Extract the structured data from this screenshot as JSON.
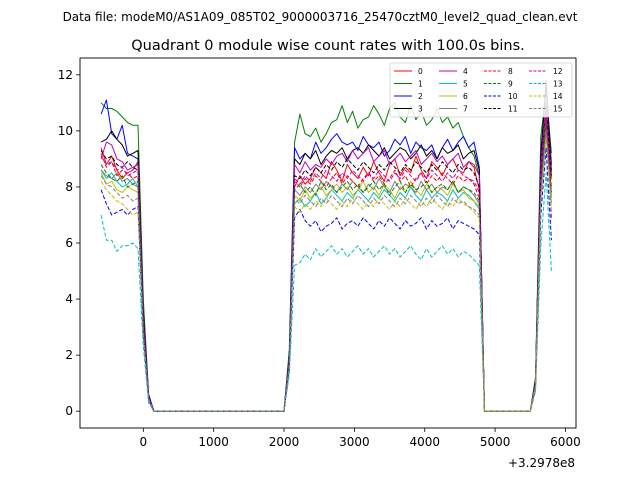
{
  "figure": {
    "suptitle": "Data file: modeM0/AS1A09_085T02_9000003716_25470cztM0_level2_quad_clean.evt"
  },
  "chart_data": {
    "type": "line",
    "title": "Quadrant 0 module wise count rates with 100.0s bins.",
    "xlabel": "",
    "ylabel": "",
    "x_offset_label": "+3.2978e8",
    "xlim": [
      -900,
      6150
    ],
    "ylim": [
      -0.6,
      12.6
    ],
    "xticks": [
      0,
      1000,
      2000,
      3000,
      4000,
      5000,
      6000
    ],
    "yticks": [
      0,
      2,
      4,
      6,
      8,
      10,
      12
    ],
    "grid": false,
    "legend_position": "top-right",
    "x": [
      -600,
      -525,
      -450,
      -375,
      -300,
      -225,
      -150,
      -75,
      0,
      75,
      150,
      2000,
      2075,
      2150,
      2225,
      2300,
      2375,
      2450,
      2525,
      2600,
      2675,
      2750,
      2825,
      2900,
      2975,
      3050,
      3125,
      3200,
      3275,
      3350,
      3425,
      3500,
      3575,
      3650,
      3725,
      3800,
      3875,
      3950,
      4025,
      4100,
      4175,
      4250,
      4325,
      4400,
      4475,
      4550,
      4625,
      4700,
      4775,
      4850,
      5500,
      5575,
      5650,
      5725,
      5800
    ],
    "series": [
      {
        "name": "0",
        "color": "#ff0000",
        "dashed": false,
        "values": [
          9.4,
          8.8,
          9.1,
          8.6,
          8.3,
          8.5,
          8.6,
          8.9,
          3.2,
          0.5,
          0,
          0,
          1.8,
          8.0,
          8.4,
          8.1,
          8.3,
          8.7,
          8.5,
          8.3,
          8.9,
          8.6,
          8.2,
          8.8,
          8.5,
          8.3,
          8.7,
          8.4,
          8.9,
          8.5,
          8.2,
          8.8,
          9.0,
          8.4,
          8.7,
          8.5,
          9.1,
          8.6,
          8.3,
          8.9,
          8.7,
          8.4,
          8.8,
          9.0,
          8.6,
          8.5,
          8.9,
          8.7,
          7.9,
          0,
          0,
          1.0,
          8.4,
          10.4,
          8.3
        ]
      },
      {
        "name": "1",
        "color": "#008000",
        "dashed": false,
        "values": [
          11.0,
          10.8,
          10.8,
          10.7,
          10.5,
          10.3,
          10.2,
          10.2,
          4.0,
          0.6,
          0,
          0,
          2.2,
          9.6,
          10.6,
          9.9,
          9.8,
          10.1,
          9.6,
          9.9,
          10.3,
          10.4,
          10.9,
          10.3,
          10.7,
          10.1,
          10.4,
          10.5,
          10.9,
          10.6,
          10.2,
          10.8,
          11.0,
          10.5,
          10.3,
          10.9,
          10.4,
          10.7,
          10.2,
          10.4,
          10.8,
          10.3,
          10.5,
          10.1,
          10.3,
          9.8,
          9.4,
          9.1,
          8.4,
          0,
          0,
          1.2,
          9.8,
          11.4,
          9.2
        ]
      },
      {
        "name": "2",
        "color": "#0000ff",
        "dashed": false,
        "values": [
          10.6,
          11.1,
          9.9,
          9.7,
          10.2,
          9.2,
          9.1,
          9.0,
          3.6,
          0.6,
          0,
          0,
          2.0,
          9.4,
          9.0,
          9.2,
          9.0,
          9.6,
          9.2,
          9.4,
          9.7,
          9.9,
          9.6,
          9.5,
          9.6,
          9.3,
          9.8,
          9.5,
          9.4,
          9.6,
          9.1,
          9.3,
          9.7,
          9.5,
          9.8,
          9.2,
          9.6,
          9.4,
          9.3,
          9.5,
          9.0,
          9.4,
          9.7,
          9.3,
          9.6,
          9.8,
          9.4,
          9.6,
          8.7,
          0,
          0,
          1.1,
          9.2,
          11.6,
          8.8
        ]
      },
      {
        "name": "3",
        "color": "#000000",
        "dashed": false,
        "values": [
          9.6,
          9.7,
          10.0,
          9.7,
          9.5,
          9.1,
          9.2,
          9.3,
          3.5,
          0.5,
          0,
          0,
          1.9,
          9.0,
          8.8,
          9.2,
          9.0,
          9.3,
          8.8,
          9.1,
          9.3,
          9.2,
          9.4,
          9.0,
          9.3,
          9.4,
          9.2,
          9.5,
          9.3,
          9.1,
          9.4,
          9.0,
          9.2,
          9.4,
          9.3,
          9.0,
          9.2,
          9.5,
          9.1,
          9.3,
          9.0,
          9.4,
          9.2,
          9.3,
          9.5,
          9.0,
          9.2,
          9.3,
          8.6,
          0,
          0,
          1.1,
          9.0,
          11.8,
          8.6
        ]
      },
      {
        "name": "4",
        "color": "#bf00bf",
        "dashed": false,
        "values": [
          9.0,
          9.6,
          9.5,
          9.0,
          8.9,
          8.6,
          8.7,
          8.8,
          3.3,
          0.5,
          0,
          0,
          1.8,
          8.8,
          8.5,
          8.9,
          8.6,
          8.8,
          8.7,
          9.0,
          8.8,
          9.1,
          9.2,
          8.9,
          9.3,
          9.0,
          9.2,
          9.4,
          8.9,
          9.1,
          9.3,
          8.8,
          9.0,
          9.2,
          8.9,
          9.1,
          9.3,
          8.8,
          9.0,
          9.2,
          8.9,
          9.1,
          8.8,
          9.0,
          9.2,
          8.7,
          8.9,
          8.8,
          8.4,
          0,
          0,
          1.0,
          8.8,
          11.0,
          8.5
        ]
      },
      {
        "name": "5",
        "color": "#00bfbf",
        "dashed": false,
        "values": [
          8.6,
          8.3,
          8.5,
          8.2,
          8.0,
          8.1,
          8.3,
          8.0,
          3.0,
          0.4,
          0,
          0,
          1.6,
          7.4,
          7.6,
          7.3,
          7.5,
          7.8,
          7.4,
          7.6,
          7.9,
          7.7,
          7.5,
          7.8,
          7.6,
          7.9,
          7.7,
          7.5,
          7.8,
          7.6,
          7.9,
          7.7,
          7.5,
          7.8,
          7.6,
          8.0,
          7.7,
          7.5,
          7.9,
          7.6,
          7.8,
          7.7,
          7.5,
          7.9,
          7.6,
          7.8,
          7.7,
          7.5,
          7.2,
          0,
          0,
          0.9,
          7.8,
          10.0,
          7.6
        ]
      },
      {
        "name": "6",
        "color": "#bfbf00",
        "dashed": false,
        "values": [
          8.5,
          8.1,
          8.2,
          7.9,
          7.8,
          8.0,
          7.9,
          7.8,
          2.9,
          0.4,
          0,
          0,
          1.7,
          7.7,
          7.5,
          7.9,
          7.6,
          7.8,
          8.0,
          7.7,
          7.9,
          8.1,
          7.8,
          8.0,
          7.7,
          7.9,
          8.2,
          7.8,
          8.0,
          7.7,
          8.1,
          7.9,
          7.6,
          8.0,
          7.8,
          8.2,
          7.9,
          7.7,
          8.1,
          7.8,
          8.0,
          7.9,
          7.7,
          8.1,
          7.8,
          7.9,
          7.6,
          7.5,
          7.3,
          0,
          0,
          0.9,
          7.9,
          10.1,
          7.7
        ]
      },
      {
        "name": "7",
        "color": "#808080",
        "dashed": false,
        "values": [
          8.6,
          8.4,
          8.3,
          8.5,
          8.2,
          8.3,
          8.1,
          8.0,
          3.0,
          0.4,
          0,
          0,
          1.7,
          7.9,
          7.7,
          8.0,
          7.8,
          8.1,
          7.9,
          8.2,
          8.0,
          7.8,
          8.1,
          7.9,
          8.2,
          8.0,
          7.8,
          8.1,
          7.9,
          8.3,
          8.0,
          7.8,
          8.2,
          7.9,
          8.1,
          8.0,
          7.8,
          8.2,
          7.9,
          8.1,
          7.8,
          8.0,
          7.9,
          8.2,
          7.8,
          8.0,
          7.9,
          7.7,
          7.4,
          0,
          0,
          0.9,
          8.0,
          10.2,
          7.8
        ]
      },
      {
        "name": "8",
        "color": "#ff0000",
        "dashed": true,
        "values": [
          9.2,
          8.7,
          8.9,
          8.4,
          8.6,
          8.5,
          8.3,
          8.4,
          3.1,
          0.5,
          0,
          0,
          1.8,
          8.2,
          8.0,
          8.3,
          8.1,
          8.4,
          8.2,
          8.0,
          8.3,
          8.5,
          8.1,
          8.4,
          8.2,
          8.0,
          8.3,
          8.5,
          8.2,
          8.4,
          8.1,
          8.3,
          8.6,
          8.2,
          8.4,
          8.0,
          8.3,
          8.5,
          8.1,
          8.4,
          8.2,
          8.5,
          8.3,
          8.1,
          8.4,
          8.2,
          8.3,
          8.1,
          7.6,
          0,
          0,
          1.0,
          8.2,
          10.5,
          8.0
        ]
      },
      {
        "name": "9",
        "color": "#008000",
        "dashed": true,
        "values": [
          8.8,
          8.5,
          8.3,
          8.2,
          8.4,
          8.0,
          8.1,
          8.2,
          3.0,
          0.4,
          0,
          0,
          1.7,
          7.9,
          8.1,
          7.8,
          8.0,
          7.7,
          8.2,
          7.9,
          8.1,
          7.8,
          8.0,
          8.2,
          7.9,
          8.1,
          7.8,
          8.0,
          8.2,
          7.9,
          8.1,
          7.7,
          8.0,
          8.2,
          7.8,
          8.1,
          7.9,
          8.0,
          8.2,
          7.8,
          8.0,
          8.1,
          7.9,
          8.2,
          7.8,
          8.0,
          7.9,
          7.8,
          7.5,
          0,
          0,
          0.9,
          8.1,
          10.3,
          7.8
        ]
      },
      {
        "name": "10",
        "color": "#0000ff",
        "dashed": true,
        "values": [
          7.9,
          7.4,
          7.0,
          7.1,
          7.2,
          7.0,
          7.2,
          7.3,
          2.7,
          0.4,
          0,
          0,
          1.5,
          6.9,
          7.2,
          6.8,
          6.6,
          6.8,
          6.4,
          6.6,
          6.7,
          6.9,
          6.5,
          6.7,
          6.8,
          6.6,
          6.9,
          6.7,
          6.5,
          6.8,
          6.6,
          6.9,
          6.7,
          6.5,
          6.8,
          6.6,
          6.7,
          6.9,
          6.5,
          6.8,
          6.6,
          6.7,
          6.9,
          6.5,
          6.8,
          6.7,
          6.6,
          6.5,
          6.3,
          0,
          0,
          0.8,
          7.0,
          9.4,
          6.1
        ]
      },
      {
        "name": "11",
        "color": "#000000",
        "dashed": true,
        "values": [
          9.3,
          9.0,
          9.1,
          8.8,
          8.7,
          8.9,
          8.7,
          8.6,
          3.2,
          0.5,
          0,
          0,
          1.8,
          8.4,
          8.3,
          8.6,
          8.4,
          8.7,
          8.5,
          8.8,
          8.6,
          8.9,
          8.7,
          9.0,
          8.8,
          8.6,
          8.9,
          8.7,
          8.5,
          8.8,
          8.6,
          8.9,
          8.7,
          8.5,
          8.8,
          8.6,
          8.9,
          8.7,
          8.5,
          8.8,
          8.6,
          8.9,
          8.7,
          8.5,
          8.8,
          8.6,
          8.7,
          8.5,
          8.0,
          0,
          0,
          1.0,
          8.5,
          10.9,
          8.4
        ]
      },
      {
        "name": "12",
        "color": "#bf00bf",
        "dashed": true,
        "values": [
          9.1,
          8.8,
          8.9,
          8.6,
          8.7,
          8.4,
          8.5,
          8.6,
          3.1,
          0.5,
          0,
          0,
          1.8,
          8.3,
          8.1,
          8.4,
          8.2,
          8.5,
          8.3,
          8.6,
          8.4,
          8.2,
          8.5,
          8.3,
          8.6,
          8.4,
          8.2,
          8.5,
          8.3,
          8.6,
          8.4,
          8.2,
          8.5,
          8.3,
          8.6,
          8.4,
          8.2,
          8.5,
          8.3,
          8.6,
          8.4,
          8.2,
          8.5,
          8.3,
          8.6,
          8.4,
          8.3,
          8.2,
          7.8,
          0,
          0,
          1.0,
          8.4,
          10.8,
          6.9
        ]
      },
      {
        "name": "13",
        "color": "#00bfbf",
        "dashed": true,
        "values": [
          7.0,
          6.1,
          6.1,
          5.7,
          5.9,
          5.9,
          6.0,
          5.8,
          2.3,
          0.3,
          0,
          0,
          1.3,
          5.2,
          5.3,
          5.6,
          5.4,
          5.8,
          5.5,
          5.7,
          5.9,
          5.6,
          5.8,
          5.5,
          5.7,
          5.9,
          5.6,
          5.8,
          5.5,
          5.7,
          5.9,
          5.6,
          5.8,
          5.5,
          5.7,
          5.9,
          5.6,
          5.4,
          5.8,
          5.5,
          5.7,
          5.9,
          5.6,
          5.8,
          5.5,
          5.7,
          5.6,
          5.4,
          5.2,
          0,
          0,
          0.7,
          5.9,
          8.5,
          5.0
        ]
      },
      {
        "name": "14",
        "color": "#bfbf00",
        "dashed": true,
        "values": [
          8.2,
          7.9,
          7.7,
          7.5,
          7.4,
          7.2,
          7.0,
          7.1,
          2.7,
          0.4,
          0,
          0,
          1.6,
          7.3,
          7.1,
          7.4,
          7.2,
          7.5,
          7.3,
          7.6,
          7.4,
          7.2,
          7.5,
          7.3,
          7.6,
          7.4,
          7.2,
          7.5,
          7.3,
          7.6,
          7.4,
          7.2,
          7.5,
          7.3,
          7.6,
          7.4,
          7.2,
          7.5,
          7.3,
          7.6,
          7.4,
          7.2,
          7.5,
          7.3,
          7.6,
          7.4,
          7.3,
          7.1,
          6.9,
          0,
          0,
          0.9,
          7.5,
          9.8,
          7.2
        ]
      },
      {
        "name": "15",
        "color": "#808080",
        "dashed": true,
        "values": [
          8.4,
          8.1,
          8.0,
          7.8,
          7.6,
          7.7,
          7.5,
          7.6,
          2.8,
          0.4,
          0,
          0,
          1.6,
          7.6,
          7.4,
          7.7,
          7.5,
          7.3,
          7.6,
          7.4,
          7.7,
          7.5,
          7.3,
          7.6,
          7.4,
          7.7,
          7.5,
          7.3,
          7.6,
          7.4,
          7.7,
          7.5,
          7.3,
          7.6,
          7.4,
          7.7,
          7.5,
          7.3,
          7.6,
          7.4,
          7.7,
          7.5,
          7.3,
          7.6,
          7.4,
          7.5,
          7.3,
          7.2,
          7.0,
          0,
          0,
          0.9,
          7.7,
          10.0,
          7.4
        ]
      }
    ]
  }
}
